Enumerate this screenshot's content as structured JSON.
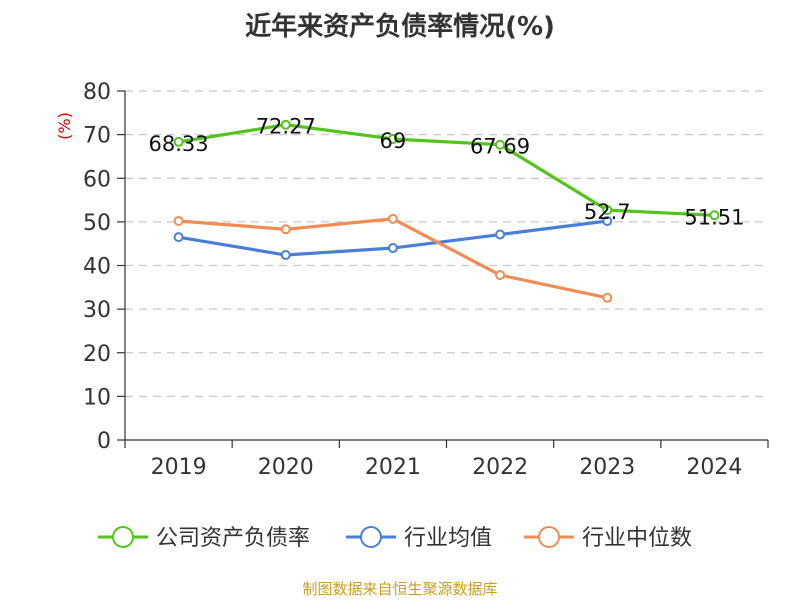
{
  "title": "近年来资产负债率情况(%)",
  "source": "制图数据来自恒生聚源数据库",
  "chart_data": {
    "type": "line",
    "title": "近年来资产负债率情况(%)",
    "ylabel": "(%)",
    "xlabel": "",
    "categories": [
      "2019",
      "2020",
      "2021",
      "2022",
      "2023",
      "2024"
    ],
    "ylim": [
      0,
      80
    ],
    "yticks": [
      0,
      10,
      20,
      30,
      40,
      50,
      60,
      70,
      80
    ],
    "grid": "horizontal dashed",
    "legend_position": "bottom",
    "series": [
      {
        "name": "公司资产负债率",
        "color": "#52c41a",
        "values": [
          68.33,
          72.27,
          69,
          67.69,
          52.7,
          51.51
        ],
        "labels": [
          "68.33",
          "72.27",
          "69",
          "67.69",
          "52.7",
          "51.51"
        ]
      },
      {
        "name": "行业均值",
        "color": "#4a7fd8",
        "values": [
          46.5,
          42.4,
          44.0,
          47.1,
          50.2,
          null
        ]
      },
      {
        "name": "行业中位数",
        "color": "#f28c55",
        "values": [
          50.2,
          48.3,
          50.7,
          37.8,
          32.6,
          null
        ]
      }
    ]
  }
}
